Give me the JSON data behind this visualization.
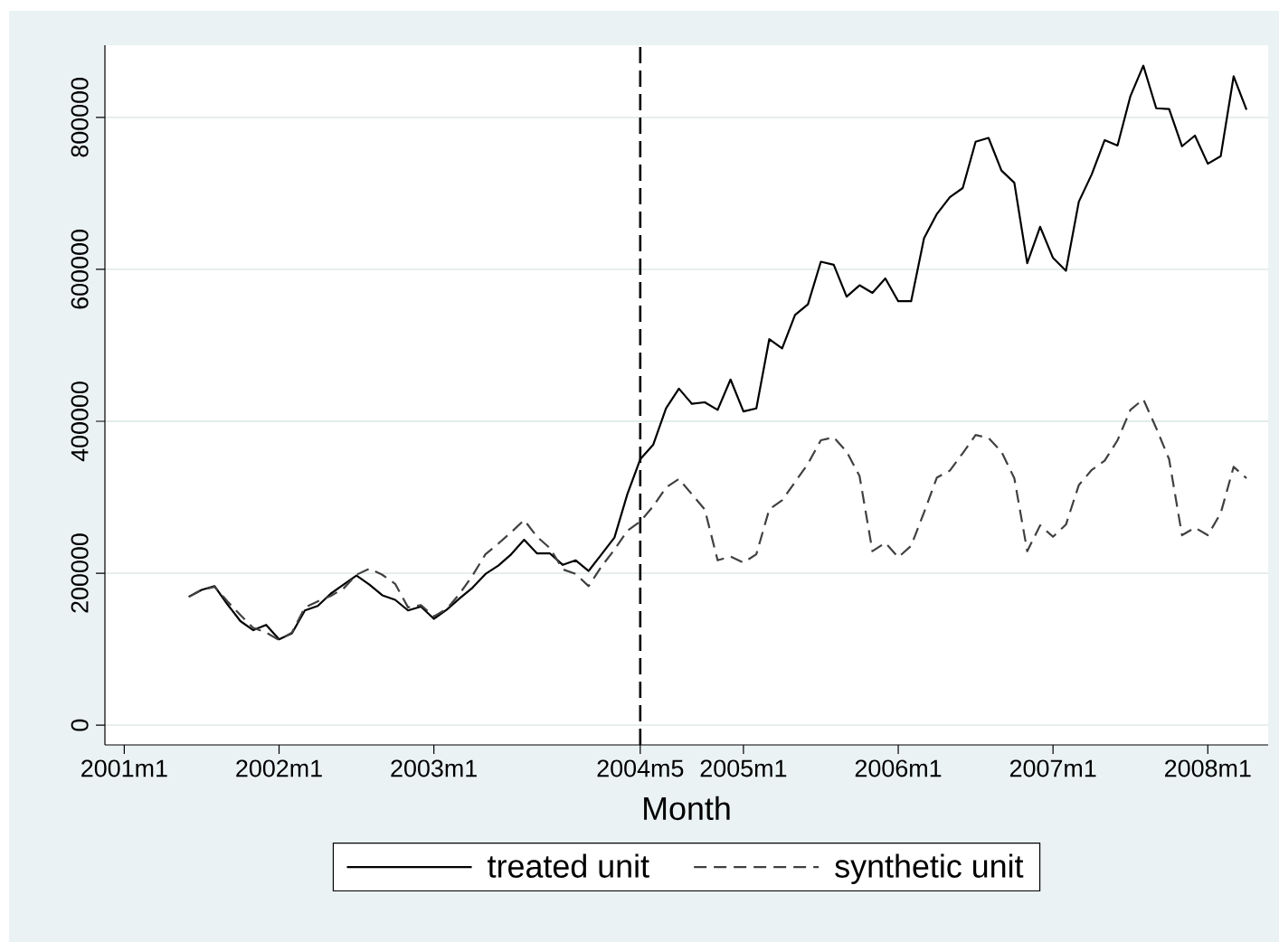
{
  "chart_data": {
    "type": "line",
    "xlabel": "Month",
    "x": [
      "2001-06",
      "2001-07",
      "2001-08",
      "2001-09",
      "2001-10",
      "2001-11",
      "2001-12",
      "2002-01",
      "2002-02",
      "2002-03",
      "2002-04",
      "2002-05",
      "2002-06",
      "2002-07",
      "2002-08",
      "2002-09",
      "2002-10",
      "2002-11",
      "2002-12",
      "2003-01",
      "2003-02",
      "2003-03",
      "2003-04",
      "2003-05",
      "2003-06",
      "2003-07",
      "2003-08",
      "2003-09",
      "2003-10",
      "2003-11",
      "2003-12",
      "2004-01",
      "2004-02",
      "2004-03",
      "2004-04",
      "2004-05",
      "2004-06",
      "2004-07",
      "2004-08",
      "2004-09",
      "2004-10",
      "2004-11",
      "2004-12",
      "2005-01",
      "2005-02",
      "2005-03",
      "2005-04",
      "2005-05",
      "2005-06",
      "2005-07",
      "2005-08",
      "2005-09",
      "2005-10",
      "2005-11",
      "2005-12",
      "2006-01",
      "2006-02",
      "2006-03",
      "2006-04",
      "2006-05",
      "2006-06",
      "2006-07",
      "2006-08",
      "2006-09",
      "2006-10",
      "2006-11",
      "2006-12",
      "2007-01",
      "2007-02",
      "2007-03",
      "2007-04",
      "2007-05",
      "2007-06",
      "2007-07",
      "2007-08",
      "2007-09",
      "2007-10",
      "2007-11",
      "2007-12",
      "2008-01",
      "2008-02",
      "2008-03",
      "2008-04"
    ],
    "series": [
      {
        "name": "treated unit",
        "color": "#000000",
        "line_style": "solid",
        "values": [
          169000,
          178000,
          183000,
          159000,
          137000,
          125000,
          132000,
          113000,
          121000,
          151000,
          157000,
          173000,
          185000,
          197000,
          185000,
          171000,
          165000,
          151000,
          156000,
          140000,
          152000,
          167000,
          181000,
          199000,
          210000,
          225000,
          244000,
          226000,
          226000,
          211000,
          217000,
          203000,
          225000,
          247000,
          304000,
          350000,
          369000,
          417000,
          443000,
          423000,
          425000,
          415000,
          455000,
          413000,
          417000,
          508000,
          496000,
          540000,
          554000,
          610000,
          606000,
          564000,
          579000,
          569000,
          588000,
          558000,
          558000,
          641000,
          673000,
          695000,
          707000,
          768000,
          773000,
          730000,
          714000,
          608000,
          656000,
          615000,
          598000,
          689000,
          725000,
          770000,
          763000,
          828000,
          868000,
          812000,
          811000,
          762000,
          776000,
          739000,
          749000,
          854000,
          810000
        ]
      },
      {
        "name": "synthetic unit",
        "color": "#404040",
        "line_style": "dashed",
        "values": [
          169000,
          178000,
          182000,
          163000,
          145000,
          128000,
          122000,
          112000,
          122000,
          155000,
          163000,
          170000,
          180000,
          198000,
          206000,
          198000,
          186000,
          155000,
          158000,
          143000,
          153000,
          173000,
          197000,
          225000,
          239000,
          254000,
          270000,
          248000,
          233000,
          205000,
          199000,
          183000,
          209000,
          231000,
          256000,
          268000,
          288000,
          313000,
          324000,
          304000,
          284000,
          217000,
          222000,
          214000,
          225000,
          284000,
          296000,
          320000,
          344000,
          375000,
          379000,
          360000,
          328000,
          229000,
          240000,
          221000,
          236000,
          280000,
          326000,
          335000,
          358000,
          382000,
          378000,
          360000,
          325000,
          229000,
          263000,
          248000,
          264000,
          316000,
          336000,
          348000,
          375000,
          415000,
          429000,
          391000,
          350000,
          250000,
          260000,
          250000,
          279000,
          340000,
          325000
        ]
      }
    ],
    "xlim": [
      "2000-11-16",
      "2008-05-22"
    ],
    "xticks": [
      {
        "value": "2001-01",
        "label": "2001m1"
      },
      {
        "value": "2002-01",
        "label": "2002m1"
      },
      {
        "value": "2003-01",
        "label": "2003m1"
      },
      {
        "value": "2004-05",
        "label": "2004m5"
      },
      {
        "value": "2005-01",
        "label": "2005m1"
      },
      {
        "value": "2006-01",
        "label": "2006m1"
      },
      {
        "value": "2007-01",
        "label": "2007m1"
      },
      {
        "value": "2008-01",
        "label": "2008m1"
      }
    ],
    "ylim": [
      -26000,
      895000
    ],
    "yticks": [
      0,
      200000,
      400000,
      600000,
      800000
    ],
    "grid": "y",
    "legend": "bottom",
    "ref_lines": [
      {
        "axis": "x",
        "value": "2004-05",
        "color": "#000000",
        "line_style": "dashed"
      }
    ]
  }
}
